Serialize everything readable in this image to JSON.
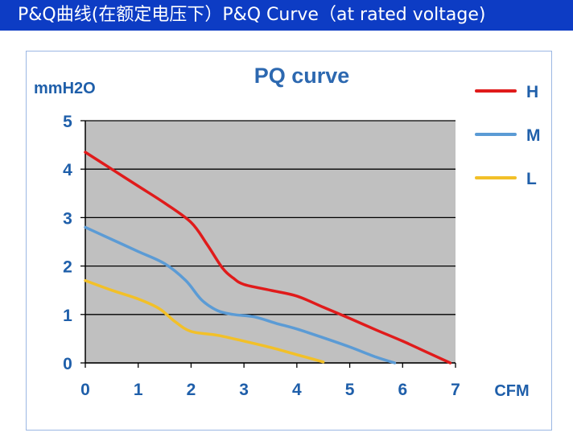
{
  "header": {
    "title": "P&Q曲线(在额定电压下）P&Q Curve（at rated voltage)",
    "background": "#0d3cc4"
  },
  "chart_data": {
    "type": "line",
    "title": "PQ curve",
    "xlabel": "CFM",
    "ylabel": "mmH2O",
    "xlim": [
      0,
      7
    ],
    "ylim": [
      0,
      5
    ],
    "xticks": [
      "0",
      "1",
      "2",
      "3",
      "4",
      "5",
      "6",
      "7"
    ],
    "yticks": [
      "0",
      "1",
      "2",
      "3",
      "4",
      "5"
    ],
    "grid": "horizontal",
    "plot_background": "#c0c0c0",
    "legend_position": "right",
    "series": [
      {
        "name": "H",
        "color": "#e01b1b",
        "x": [
          0,
          0.5,
          1,
          1.5,
          2,
          2.3,
          2.6,
          2.8,
          3,
          3.5,
          4,
          4.5,
          5,
          5.5,
          6,
          6.5,
          6.9
        ],
        "y": [
          4.35,
          4.0,
          3.65,
          3.3,
          2.9,
          2.45,
          1.95,
          1.75,
          1.62,
          1.5,
          1.38,
          1.15,
          0.92,
          0.68,
          0.45,
          0.2,
          0.0
        ]
      },
      {
        "name": "M",
        "color": "#5b9bd5",
        "x": [
          0,
          0.5,
          1,
          1.5,
          1.9,
          2.2,
          2.5,
          2.8,
          3.2,
          3.6,
          4,
          4.5,
          5,
          5.5,
          5.85
        ],
        "y": [
          2.8,
          2.55,
          2.3,
          2.05,
          1.7,
          1.3,
          1.08,
          1.0,
          0.95,
          0.82,
          0.7,
          0.52,
          0.33,
          0.12,
          0.0
        ]
      },
      {
        "name": "L",
        "color": "#f2c028",
        "x": [
          0,
          0.5,
          1,
          1.4,
          1.7,
          2,
          2.5,
          3,
          3.5,
          4,
          4.5
        ],
        "y": [
          1.7,
          1.5,
          1.32,
          1.12,
          0.85,
          0.65,
          0.57,
          0.45,
          0.32,
          0.17,
          0.02
        ]
      }
    ]
  }
}
